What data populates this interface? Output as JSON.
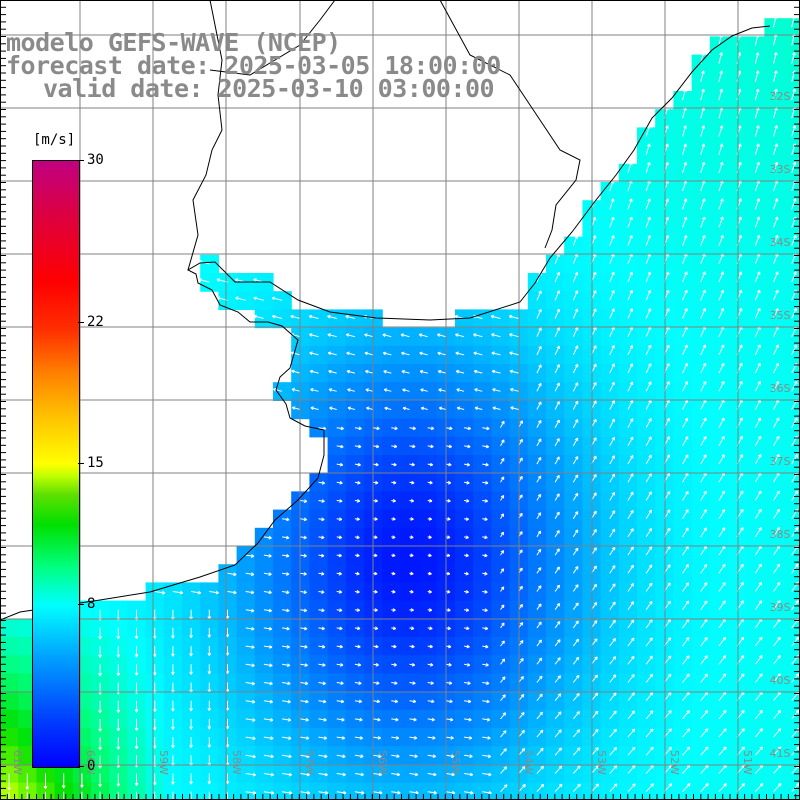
{
  "title": {
    "line1": "modelo GEFS-WAVE (NCEP)",
    "line2": "forecast date: 2025-03-05 18:00:00",
    "line3": "valid date: 2025-03-10 03:00:00"
  },
  "colorbar": {
    "unit": "[m/s]",
    "min": 0,
    "max": 30,
    "ticks": [
      "30",
      "22",
      "15",
      "8",
      "0"
    ],
    "tick_values": [
      30,
      22,
      15,
      8,
      0
    ],
    "colors": {
      "low": "#0000ff",
      "mid_low": "#00ffff",
      "mid": "#00e000",
      "mid_high": "#ffff00",
      "high": "#ff0000",
      "top": "#c00080"
    }
  },
  "map": {
    "land_color": "#ffffff",
    "grid_color": "#808080",
    "coast_color": "#000000",
    "arrow_color": "#ffffff",
    "latitude_labels": [
      "32S",
      "33S",
      "34S",
      "35S",
      "36S",
      "37S",
      "38S",
      "39S",
      "40S",
      "41S"
    ],
    "longitude_labels": [
      "61W",
      "60W",
      "59W",
      "58W",
      "57W",
      "56W",
      "55W",
      "54W",
      "53W",
      "52W",
      "51W"
    ]
  }
}
